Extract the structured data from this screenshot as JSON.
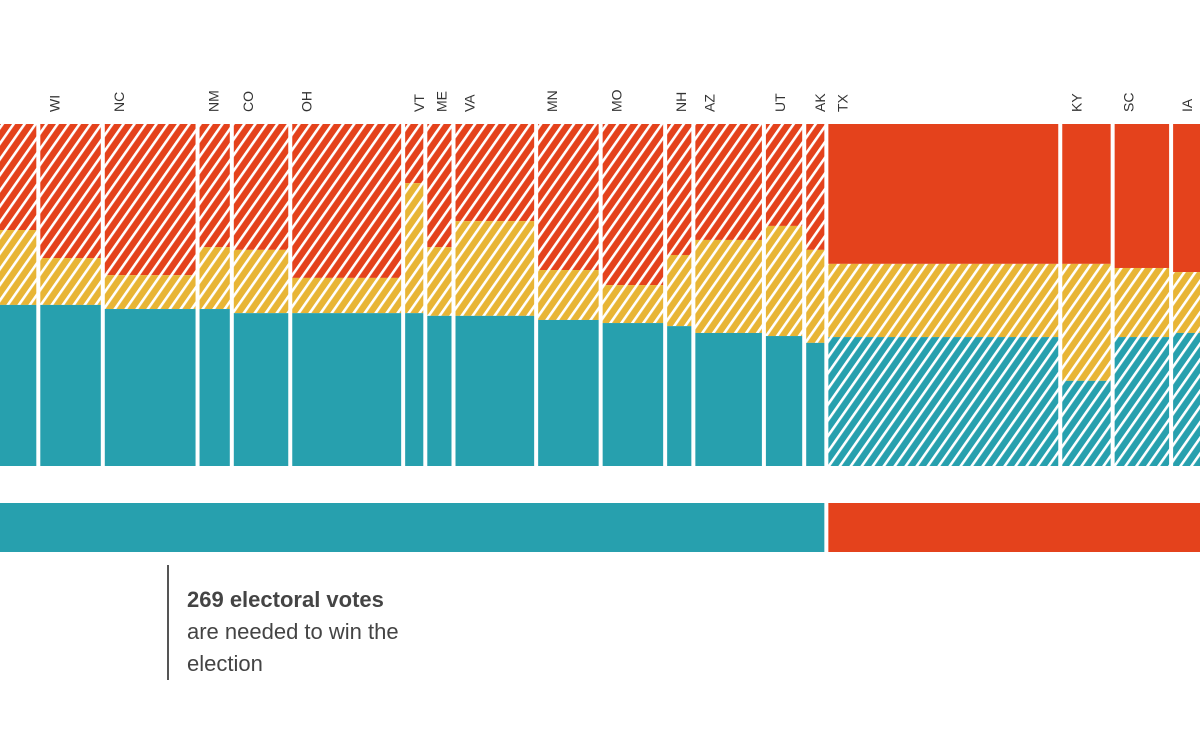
{
  "chart_data": {
    "type": "bar",
    "subtype": "marimekko-stacked-100",
    "description_units": "column width = electoral votes; stacks = share (%) from bottom: blue, yellow, remainder red",
    "colors": {
      "blue": "#27a0ae",
      "yellow": "#e8b535",
      "red": "#e4421c"
    },
    "states": [
      {
        "label": "",
        "ev": 6,
        "winner": "blue",
        "blue": 47.1,
        "blue_plus_yellow": 69.0
      },
      {
        "label": "WI",
        "ev": 10,
        "winner": "blue",
        "blue": 47.1,
        "blue_plus_yellow": 60.8
      },
      {
        "label": "NC",
        "ev": 15,
        "winner": "blue",
        "blue": 45.9,
        "blue_plus_yellow": 55.8
      },
      {
        "label": "NM",
        "ev": 5,
        "winner": "blue",
        "blue": 45.9,
        "blue_plus_yellow": 64.0
      },
      {
        "label": "CO",
        "ev": 9,
        "winner": "blue",
        "blue": 44.7,
        "blue_plus_yellow": 63.2
      },
      {
        "label": "OH",
        "ev": 18,
        "winner": "blue",
        "blue": 44.7,
        "blue_plus_yellow": 55.0
      },
      {
        "label": "VT",
        "ev": 3,
        "winner": "blue",
        "blue": 44.7,
        "blue_plus_yellow": 82.7
      },
      {
        "label": "ME",
        "ev": 4,
        "winner": "blue",
        "blue": 43.9,
        "blue_plus_yellow": 64.0
      },
      {
        "label": "VA",
        "ev": 13,
        "winner": "blue",
        "blue": 43.9,
        "blue_plus_yellow": 71.6
      },
      {
        "label": "MN",
        "ev": 10,
        "winner": "blue",
        "blue": 42.7,
        "blue_plus_yellow": 57.3
      },
      {
        "label": "MO",
        "ev": 10,
        "winner": "blue",
        "blue": 41.8,
        "blue_plus_yellow": 52.9
      },
      {
        "label": "NH",
        "ev": 4,
        "winner": "blue",
        "blue": 40.9,
        "blue_plus_yellow": 61.7
      },
      {
        "label": "AZ",
        "ev": 11,
        "winner": "blue",
        "blue": 38.9,
        "blue_plus_yellow": 66.1
      },
      {
        "label": "UT",
        "ev": 6,
        "winner": "blue",
        "blue": 38.0,
        "blue_plus_yellow": 70.2
      },
      {
        "label": "AK",
        "ev": 3,
        "winner": "blue",
        "blue": 36.0,
        "blue_plus_yellow": 63.2
      },
      {
        "label": "TX",
        "ev": 38,
        "winner": "red",
        "blue": 37.7,
        "blue_plus_yellow": 59.1
      },
      {
        "label": "KY",
        "ev": 8,
        "winner": "red",
        "blue": 24.9,
        "blue_plus_yellow": 59.1
      },
      {
        "label": "SC",
        "ev": 9,
        "winner": "red",
        "blue": 37.7,
        "blue_plus_yellow": 57.9
      },
      {
        "label": "IA",
        "ev": 6,
        "winner": "red",
        "blue": 38.9,
        "blue_plus_yellow": 56.7
      }
    ],
    "totals_bar": [
      {
        "party": "blue"
      },
      {
        "party": "red"
      }
    ]
  },
  "annotation": {
    "headline": "269 electoral votes",
    "body": "are needed to win the election"
  }
}
